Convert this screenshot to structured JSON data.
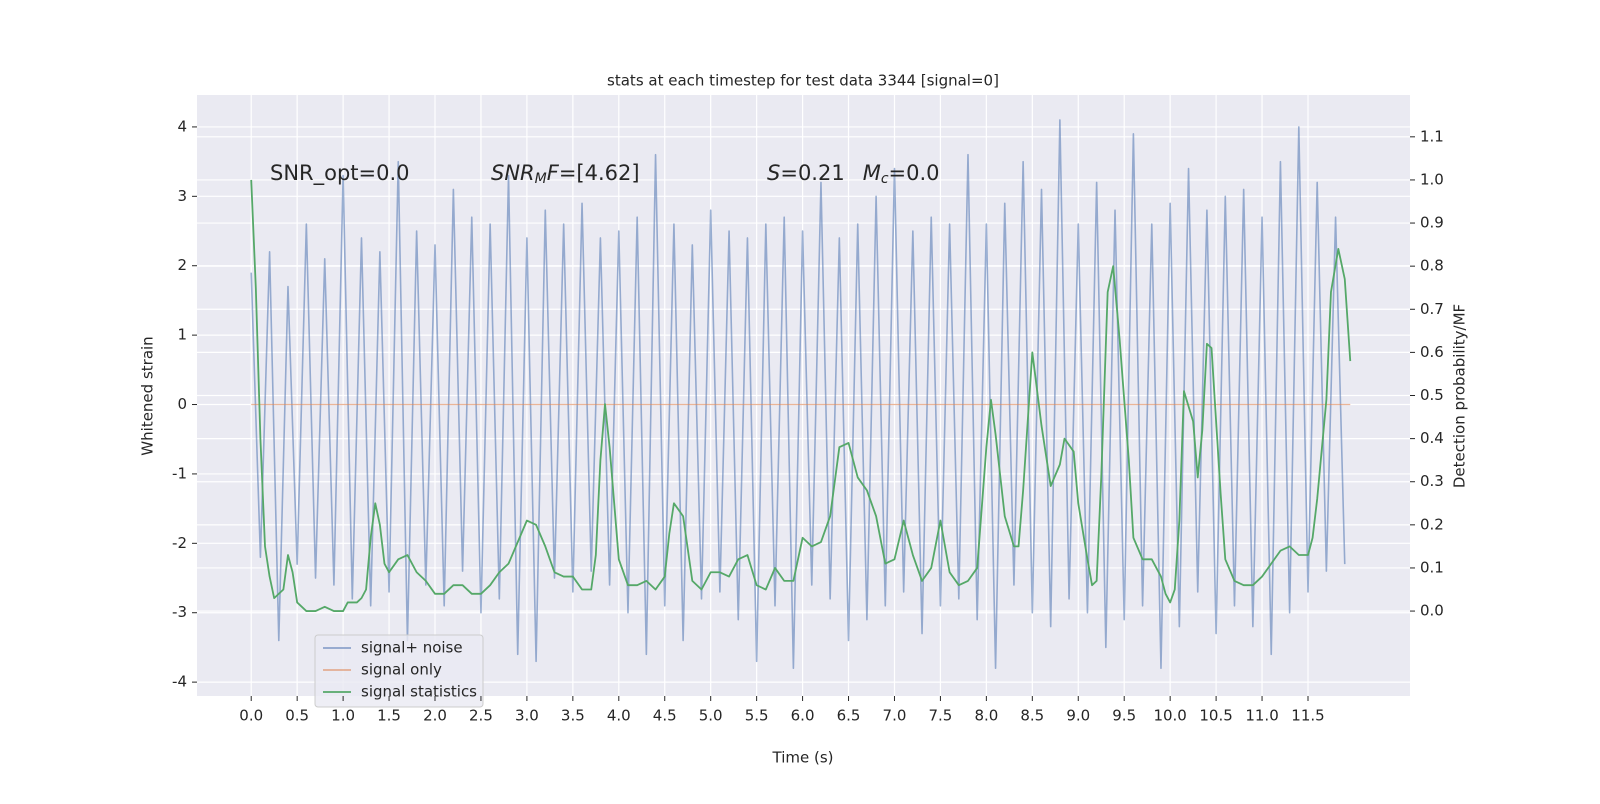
{
  "chart_data": {
    "type": "line",
    "title": "stats at each timestep for test data 3344 [signal=0]",
    "xlabel": "Time (s)",
    "ylabel": "Whitened strain",
    "y2label": "Detection probability/MF",
    "annotations": [
      [
        "SNR_opt=0.0"
      ],
      [
        "SNR",
        "M",
        "F",
        "=[4.62]"
      ],
      [
        "S",
        "=0.21",
        "M",
        "c",
        "=0.0"
      ]
    ],
    "xlim": [
      -0.59,
      12.61
    ],
    "xticks": [
      {
        "value": 0,
        "label": "0.0"
      },
      0.5,
      {
        "value": 1,
        "label": "1.0"
      },
      1.5,
      {
        "value": 2,
        "label": "2.0"
      },
      2.5,
      {
        "value": 3,
        "label": "3.0"
      },
      3.5,
      {
        "value": 4,
        "label": "4.0"
      },
      4.5,
      {
        "value": 5,
        "label": "5.0"
      },
      5.5,
      {
        "value": 6,
        "label": "6.0"
      },
      6.5,
      {
        "value": 7,
        "label": "7.0"
      },
      7.5,
      {
        "value": 8,
        "label": "8.0"
      },
      8.5,
      {
        "value": 9,
        "label": "9.0"
      },
      9.5,
      {
        "value": 10,
        "label": "10.0"
      },
      10.5,
      {
        "value": 11,
        "label": "11.0"
      },
      11.5
    ],
    "ylim": [
      -4.2,
      4.46
    ],
    "yticks": [
      -4,
      -3,
      -2,
      -1,
      0,
      1,
      2,
      3,
      4
    ],
    "y2lim": [
      -0.197,
      1.197
    ],
    "y2ticks": [
      {
        "value": 0,
        "label": "0.0"
      },
      0.1,
      0.2,
      0.3,
      0.4,
      0.5,
      0.6,
      0.7,
      0.8,
      0.9,
      {
        "value": 1,
        "label": "1.0"
      },
      1.1
    ],
    "grid": true,
    "legend": "lower left",
    "series": [
      {
        "name": "signal+ noise",
        "color": "#4c72b0",
        "x": [
          0.0,
          0.1,
          0.2,
          0.3,
          0.4,
          0.5,
          0.6,
          0.7,
          0.8,
          0.9,
          1.0,
          1.1,
          1.2,
          1.3,
          1.4,
          1.5,
          1.6,
          1.7,
          1.8,
          1.9,
          2.0,
          2.1,
          2.2,
          2.3,
          2.4,
          2.5,
          2.6,
          2.7,
          2.8,
          2.9,
          3.0,
          3.1,
          3.2,
          3.3,
          3.4,
          3.5,
          3.6,
          3.7,
          3.8,
          3.9,
          4.0,
          4.1,
          4.2,
          4.3,
          4.4,
          4.5,
          4.6,
          4.7,
          4.8,
          4.9,
          5.0,
          5.1,
          5.2,
          5.3,
          5.4,
          5.5,
          5.6,
          5.7,
          5.8,
          5.9,
          6.0,
          6.1,
          6.2,
          6.3,
          6.4,
          6.5,
          6.6,
          6.7,
          6.8,
          6.9,
          7.0,
          7.1,
          7.2,
          7.3,
          7.4,
          7.5,
          7.6,
          7.7,
          7.8,
          7.9,
          8.0,
          8.1,
          8.2,
          8.3,
          8.4,
          8.5,
          8.6,
          8.7,
          8.8,
          8.9,
          9.0,
          9.1,
          9.2,
          9.3,
          9.4,
          9.5,
          9.6,
          9.7,
          9.8,
          9.9,
          10.0,
          10.1,
          10.2,
          10.3,
          10.4,
          10.5,
          10.6,
          10.7,
          10.8,
          10.9,
          11.0,
          11.1,
          11.2,
          11.3,
          11.4,
          11.5,
          11.6,
          11.7,
          11.8,
          11.9
        ],
        "values": [
          1.9,
          -2.2,
          2.2,
          -3.4,
          1.7,
          -2.3,
          2.6,
          -2.5,
          2.1,
          -2.6,
          3.3,
          -2.8,
          2.4,
          -2.9,
          2.2,
          -2.7,
          3.5,
          -3.4,
          2.5,
          -2.6,
          2.3,
          -2.9,
          3.1,
          -2.4,
          2.7,
          -3.0,
          2.6,
          -2.8,
          3.3,
          -3.6,
          2.4,
          -3.7,
          2.8,
          -2.5,
          2.6,
          -2.7,
          2.9,
          -2.4,
          2.4,
          -2.6,
          2.5,
          -3.0,
          2.7,
          -3.6,
          3.6,
          -2.9,
          2.6,
          -3.4,
          2.3,
          -2.8,
          2.8,
          -2.7,
          2.5,
          -3.1,
          2.4,
          -3.7,
          2.6,
          -2.9,
          2.7,
          -3.8,
          2.5,
          -2.6,
          3.2,
          -2.8,
          2.4,
          -3.4,
          2.6,
          -3.1,
          3.0,
          -2.9,
          3.4,
          -2.7,
          2.5,
          -3.3,
          2.7,
          -2.9,
          2.6,
          -2.8,
          3.6,
          -3.1,
          2.6,
          -3.8,
          2.9,
          -2.6,
          3.5,
          -3.0,
          3.1,
          -3.2,
          4.1,
          -2.8,
          2.6,
          -3.0,
          3.2,
          -3.5,
          2.8,
          -3.1,
          3.9,
          -2.9,
          2.6,
          -3.8,
          2.9,
          -3.2,
          3.4,
          -2.7,
          2.8,
          -3.3,
          3.0,
          -2.9,
          3.1,
          -3.2,
          2.7,
          -3.6,
          3.5,
          -3.0,
          4.0,
          -2.7,
          3.2,
          -2.4,
          2.7,
          -2.3
        ]
      },
      {
        "name": "signal only",
        "color": "#dd8452",
        "x": [
          0.0,
          11.96
        ],
        "values": [
          0,
          0
        ]
      },
      {
        "name": "signal statistics",
        "color": "#55a868",
        "axis": "y2",
        "x": [
          0.0,
          0.05,
          0.1,
          0.15,
          0.2,
          0.25,
          0.35,
          0.4,
          0.45,
          0.5,
          0.6,
          0.7,
          0.8,
          0.9,
          1.0,
          1.05,
          1.15,
          1.2,
          1.25,
          1.3,
          1.35,
          1.4,
          1.45,
          1.5,
          1.6,
          1.7,
          1.8,
          1.9,
          2.0,
          2.1,
          2.2,
          2.3,
          2.4,
          2.5,
          2.6,
          2.7,
          2.8,
          2.9,
          3.0,
          3.1,
          3.2,
          3.3,
          3.4,
          3.5,
          3.6,
          3.7,
          3.75,
          3.8,
          3.85,
          3.9,
          3.95,
          4.0,
          4.1,
          4.2,
          4.3,
          4.4,
          4.5,
          4.55,
          4.6,
          4.7,
          4.8,
          4.9,
          5.0,
          5.1,
          5.2,
          5.3,
          5.4,
          5.5,
          5.6,
          5.7,
          5.8,
          5.9,
          6.0,
          6.1,
          6.2,
          6.3,
          6.4,
          6.5,
          6.6,
          6.7,
          6.8,
          6.9,
          7.0,
          7.1,
          7.2,
          7.3,
          7.4,
          7.5,
          7.6,
          7.7,
          7.8,
          7.9,
          8.0,
          8.05,
          8.1,
          8.2,
          8.3,
          8.35,
          8.4,
          8.5,
          8.6,
          8.7,
          8.8,
          8.85,
          8.95,
          9.0,
          9.1,
          9.15,
          9.2,
          9.25,
          9.32,
          9.38,
          9.45,
          9.55,
          9.6,
          9.7,
          9.8,
          9.9,
          9.95,
          10.0,
          10.05,
          10.1,
          10.15,
          10.25,
          10.3,
          10.35,
          10.4,
          10.45,
          10.55,
          10.6,
          10.7,
          10.8,
          10.9,
          11.0,
          11.1,
          11.2,
          11.3,
          11.4,
          11.5,
          11.55,
          11.6,
          11.7,
          11.75,
          11.83,
          11.9,
          11.96
        ],
        "values": [
          1.0,
          0.75,
          0.4,
          0.15,
          0.08,
          0.03,
          0.05,
          0.13,
          0.09,
          0.02,
          0.0,
          0.0,
          0.01,
          0.0,
          0.0,
          0.02,
          0.02,
          0.03,
          0.05,
          0.17,
          0.25,
          0.2,
          0.11,
          0.09,
          0.12,
          0.13,
          0.09,
          0.07,
          0.04,
          0.04,
          0.06,
          0.06,
          0.04,
          0.04,
          0.06,
          0.09,
          0.11,
          0.16,
          0.21,
          0.2,
          0.15,
          0.09,
          0.08,
          0.08,
          0.05,
          0.05,
          0.13,
          0.35,
          0.48,
          0.38,
          0.25,
          0.12,
          0.06,
          0.06,
          0.07,
          0.05,
          0.08,
          0.18,
          0.25,
          0.22,
          0.07,
          0.05,
          0.09,
          0.09,
          0.08,
          0.12,
          0.13,
          0.06,
          0.05,
          0.1,
          0.07,
          0.07,
          0.17,
          0.15,
          0.16,
          0.22,
          0.38,
          0.39,
          0.31,
          0.28,
          0.22,
          0.11,
          0.12,
          0.21,
          0.13,
          0.07,
          0.1,
          0.21,
          0.09,
          0.06,
          0.07,
          0.1,
          0.38,
          0.49,
          0.41,
          0.22,
          0.15,
          0.15,
          0.28,
          0.6,
          0.43,
          0.29,
          0.34,
          0.4,
          0.37,
          0.25,
          0.12,
          0.06,
          0.07,
          0.31,
          0.74,
          0.8,
          0.63,
          0.35,
          0.17,
          0.12,
          0.12,
          0.08,
          0.04,
          0.02,
          0.05,
          0.21,
          0.51,
          0.44,
          0.31,
          0.42,
          0.62,
          0.61,
          0.27,
          0.12,
          0.07,
          0.06,
          0.06,
          0.08,
          0.11,
          0.14,
          0.15,
          0.13,
          0.13,
          0.17,
          0.26,
          0.49,
          0.74,
          0.84,
          0.77,
          0.58
        ]
      }
    ]
  }
}
